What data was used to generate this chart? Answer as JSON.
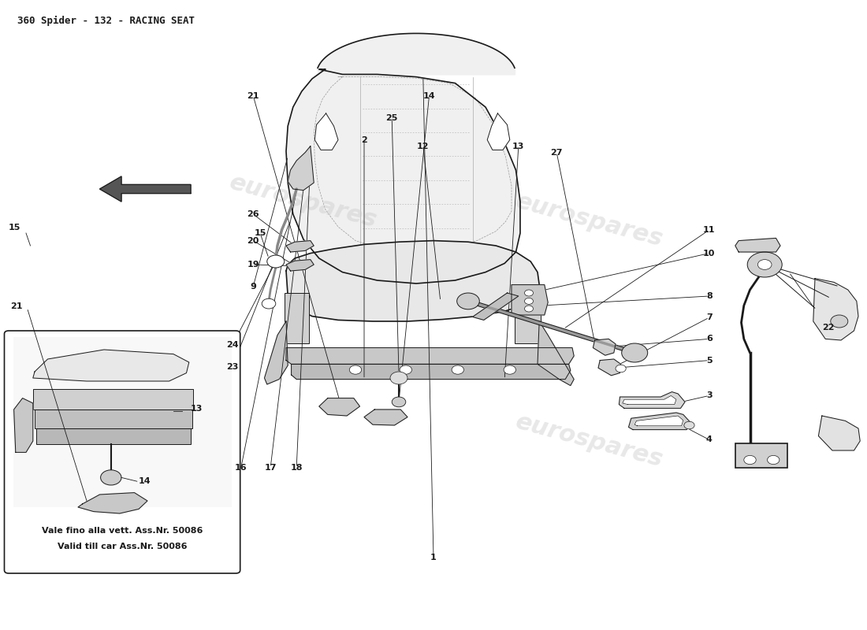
{
  "title": "360 Spider - 132 - RACING SEAT",
  "bg_color": "#ffffff",
  "line_color": "#1a1a1a",
  "watermark_text": "eurospares",
  "watermark_color": "#cccccc",
  "note_text1": "Vale fino alla vett. Ass.Nr. 50086",
  "note_text2": "Valid till car Ass.Nr. 50086",
  "title_fontsize": 9,
  "label_fontsize": 8,
  "wm_fontsize": 22,
  "seat_fill": "#f0f0f0",
  "seat_edge": "#1a1a1a",
  "frame_fill": "#d0d0d0",
  "dark_fill": "#888888"
}
